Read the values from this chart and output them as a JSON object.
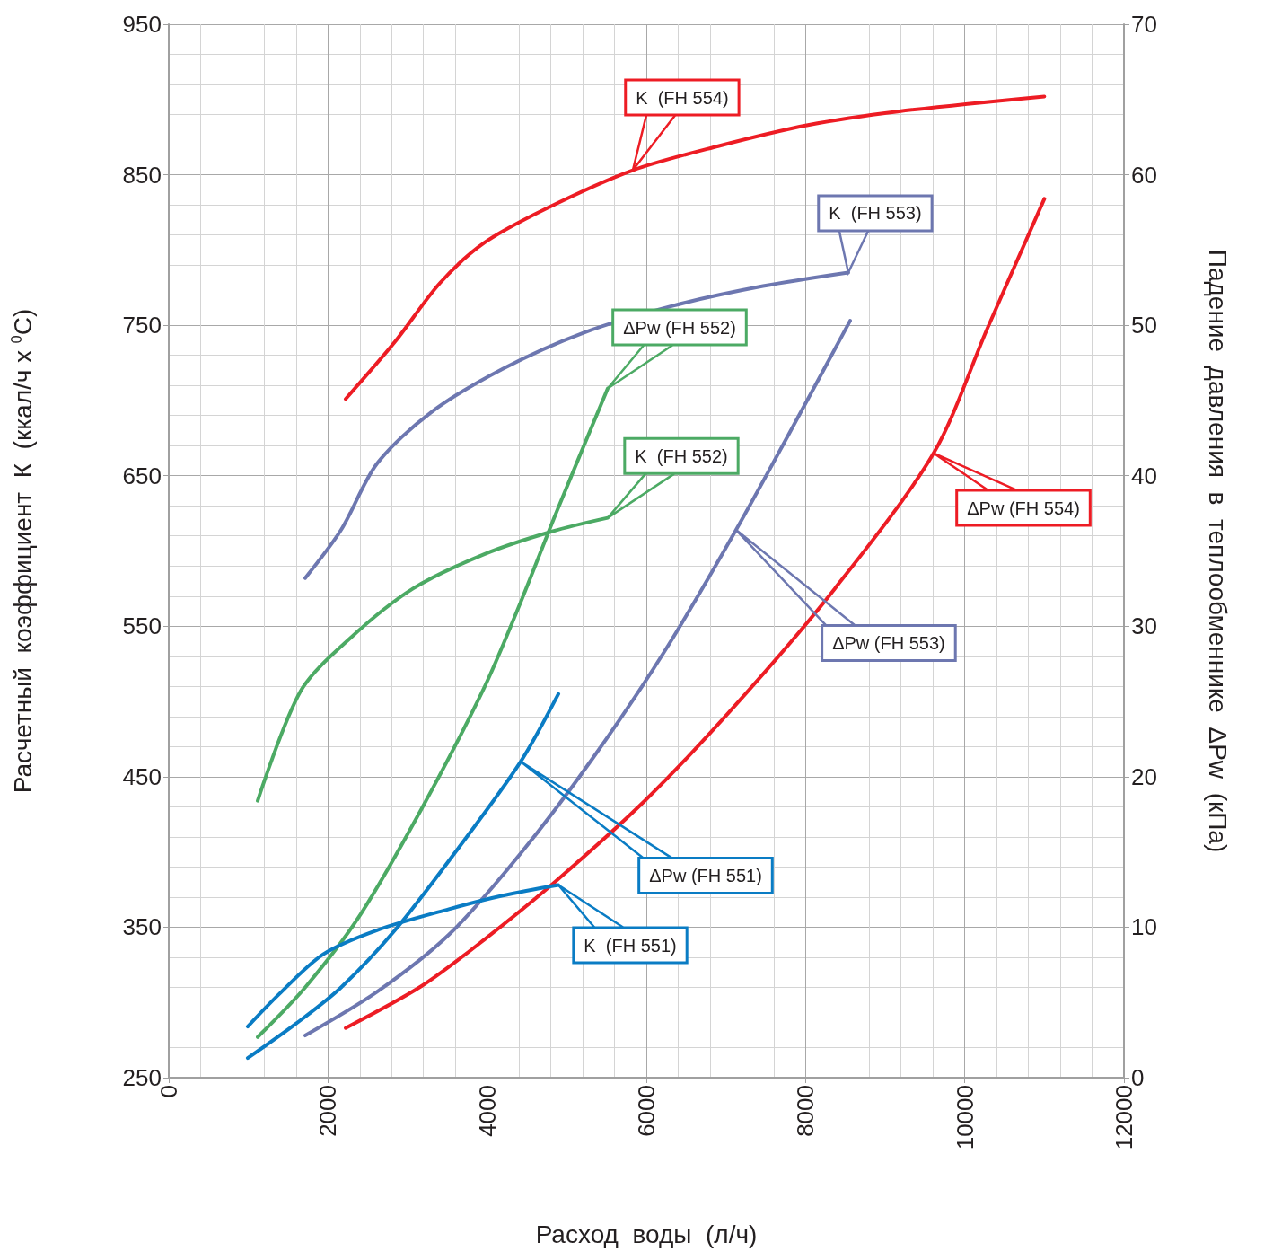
{
  "chart_data": {
    "type": "line",
    "xlabel": "Расход  воды  (л/ч)",
    "ylabel": "Расчетный  коэффициент  К  (ккал/ч x $^{0}$C)",
    "y2label": "Падение  давления  в  теплообменнике  ΔPw  (кПа)",
    "xlim": [
      0,
      12000
    ],
    "xticks": [
      0,
      2000,
      4000,
      6000,
      8000,
      10000,
      12000
    ],
    "ylim": [
      250,
      950
    ],
    "yticks": [
      250,
      350,
      450,
      550,
      650,
      750,
      850,
      950
    ],
    "y2lim": [
      0,
      70
    ],
    "y2ticks": [
      0,
      10,
      20,
      30,
      40,
      50,
      60,
      70
    ],
    "grid": true,
    "marker": "none",
    "line_style": "solid",
    "series": [
      {
        "color": "#ed1c24",
        "x": [
          2222,
          2842,
          3406,
          3970,
          4759,
          5830,
          6902,
          8030,
          9158,
          11000
        ],
        "values": [
          701,
          739,
          778,
          805,
          828,
          853,
          869,
          883,
          892,
          902
        ]
      },
      {
        "color": "#ed1c24",
        "axis": "y2",
        "x": [
          2222,
          3180,
          3970,
          4872,
          6000,
          7127,
          8368,
          9609,
          10285,
          11000
        ],
        "values": [
          3.3,
          6.1,
          9.2,
          13.1,
          18.5,
          24.8,
          32.5,
          41.5,
          49.8,
          58.4
        ]
      },
      {
        "color": "#6d77b0",
        "x": [
          1714,
          2165,
          2616,
          3293,
          4195,
          5210,
          6338,
          7466,
          8537
        ],
        "values": [
          582,
          614,
          658,
          692,
          721,
          745,
          763,
          776,
          785
        ]
      },
      {
        "color": "#6d77b0",
        "axis": "y2",
        "x": [
          1714,
          2616,
          3519,
          4421,
          5323,
          6225,
          7127,
          8030,
          8560
        ],
        "values": [
          2.8,
          5.7,
          9.5,
          14.9,
          21.2,
          28.3,
          36.4,
          45.1,
          50.3
        ]
      },
      {
        "color": "#4caa64",
        "x": [
          1117,
          1658,
          2278,
          3068,
          3970,
          4815,
          5515
        ],
        "values": [
          434,
          507,
          542,
          575,
          598,
          613,
          622
        ]
      },
      {
        "color": "#4caa64",
        "axis": "y2",
        "x": [
          1117,
          1714,
          2391,
          3180,
          3970,
          4421,
          4872,
          5515
        ],
        "values": [
          2.7,
          6.0,
          10.7,
          17.9,
          26.0,
          31.6,
          37.6,
          45.8
        ]
      },
      {
        "color": "#0a7cc4",
        "x": [
          992,
          1376,
          1940,
          2616,
          3519,
          4195,
          4895
        ],
        "values": [
          284,
          305,
          332,
          348,
          362,
          371,
          378
        ]
      },
      {
        "color": "#0a7cc4",
        "axis": "y2",
        "x": [
          992,
          1601,
          2165,
          2842,
          3631,
          4421,
          4895
        ],
        "values": [
          1.3,
          3.6,
          6.0,
          9.8,
          15.2,
          21.0,
          25.5
        ]
      }
    ],
    "annotations": [
      "K  (FH 554)",
      "K  (FH 553)",
      "ΔPw (FH 552)",
      "K  (FH 552)",
      "ΔPw (FH 554)",
      "ΔPw (FH 553)",
      "ΔPw (FH 551)",
      "K  (FH 551)"
    ]
  }
}
